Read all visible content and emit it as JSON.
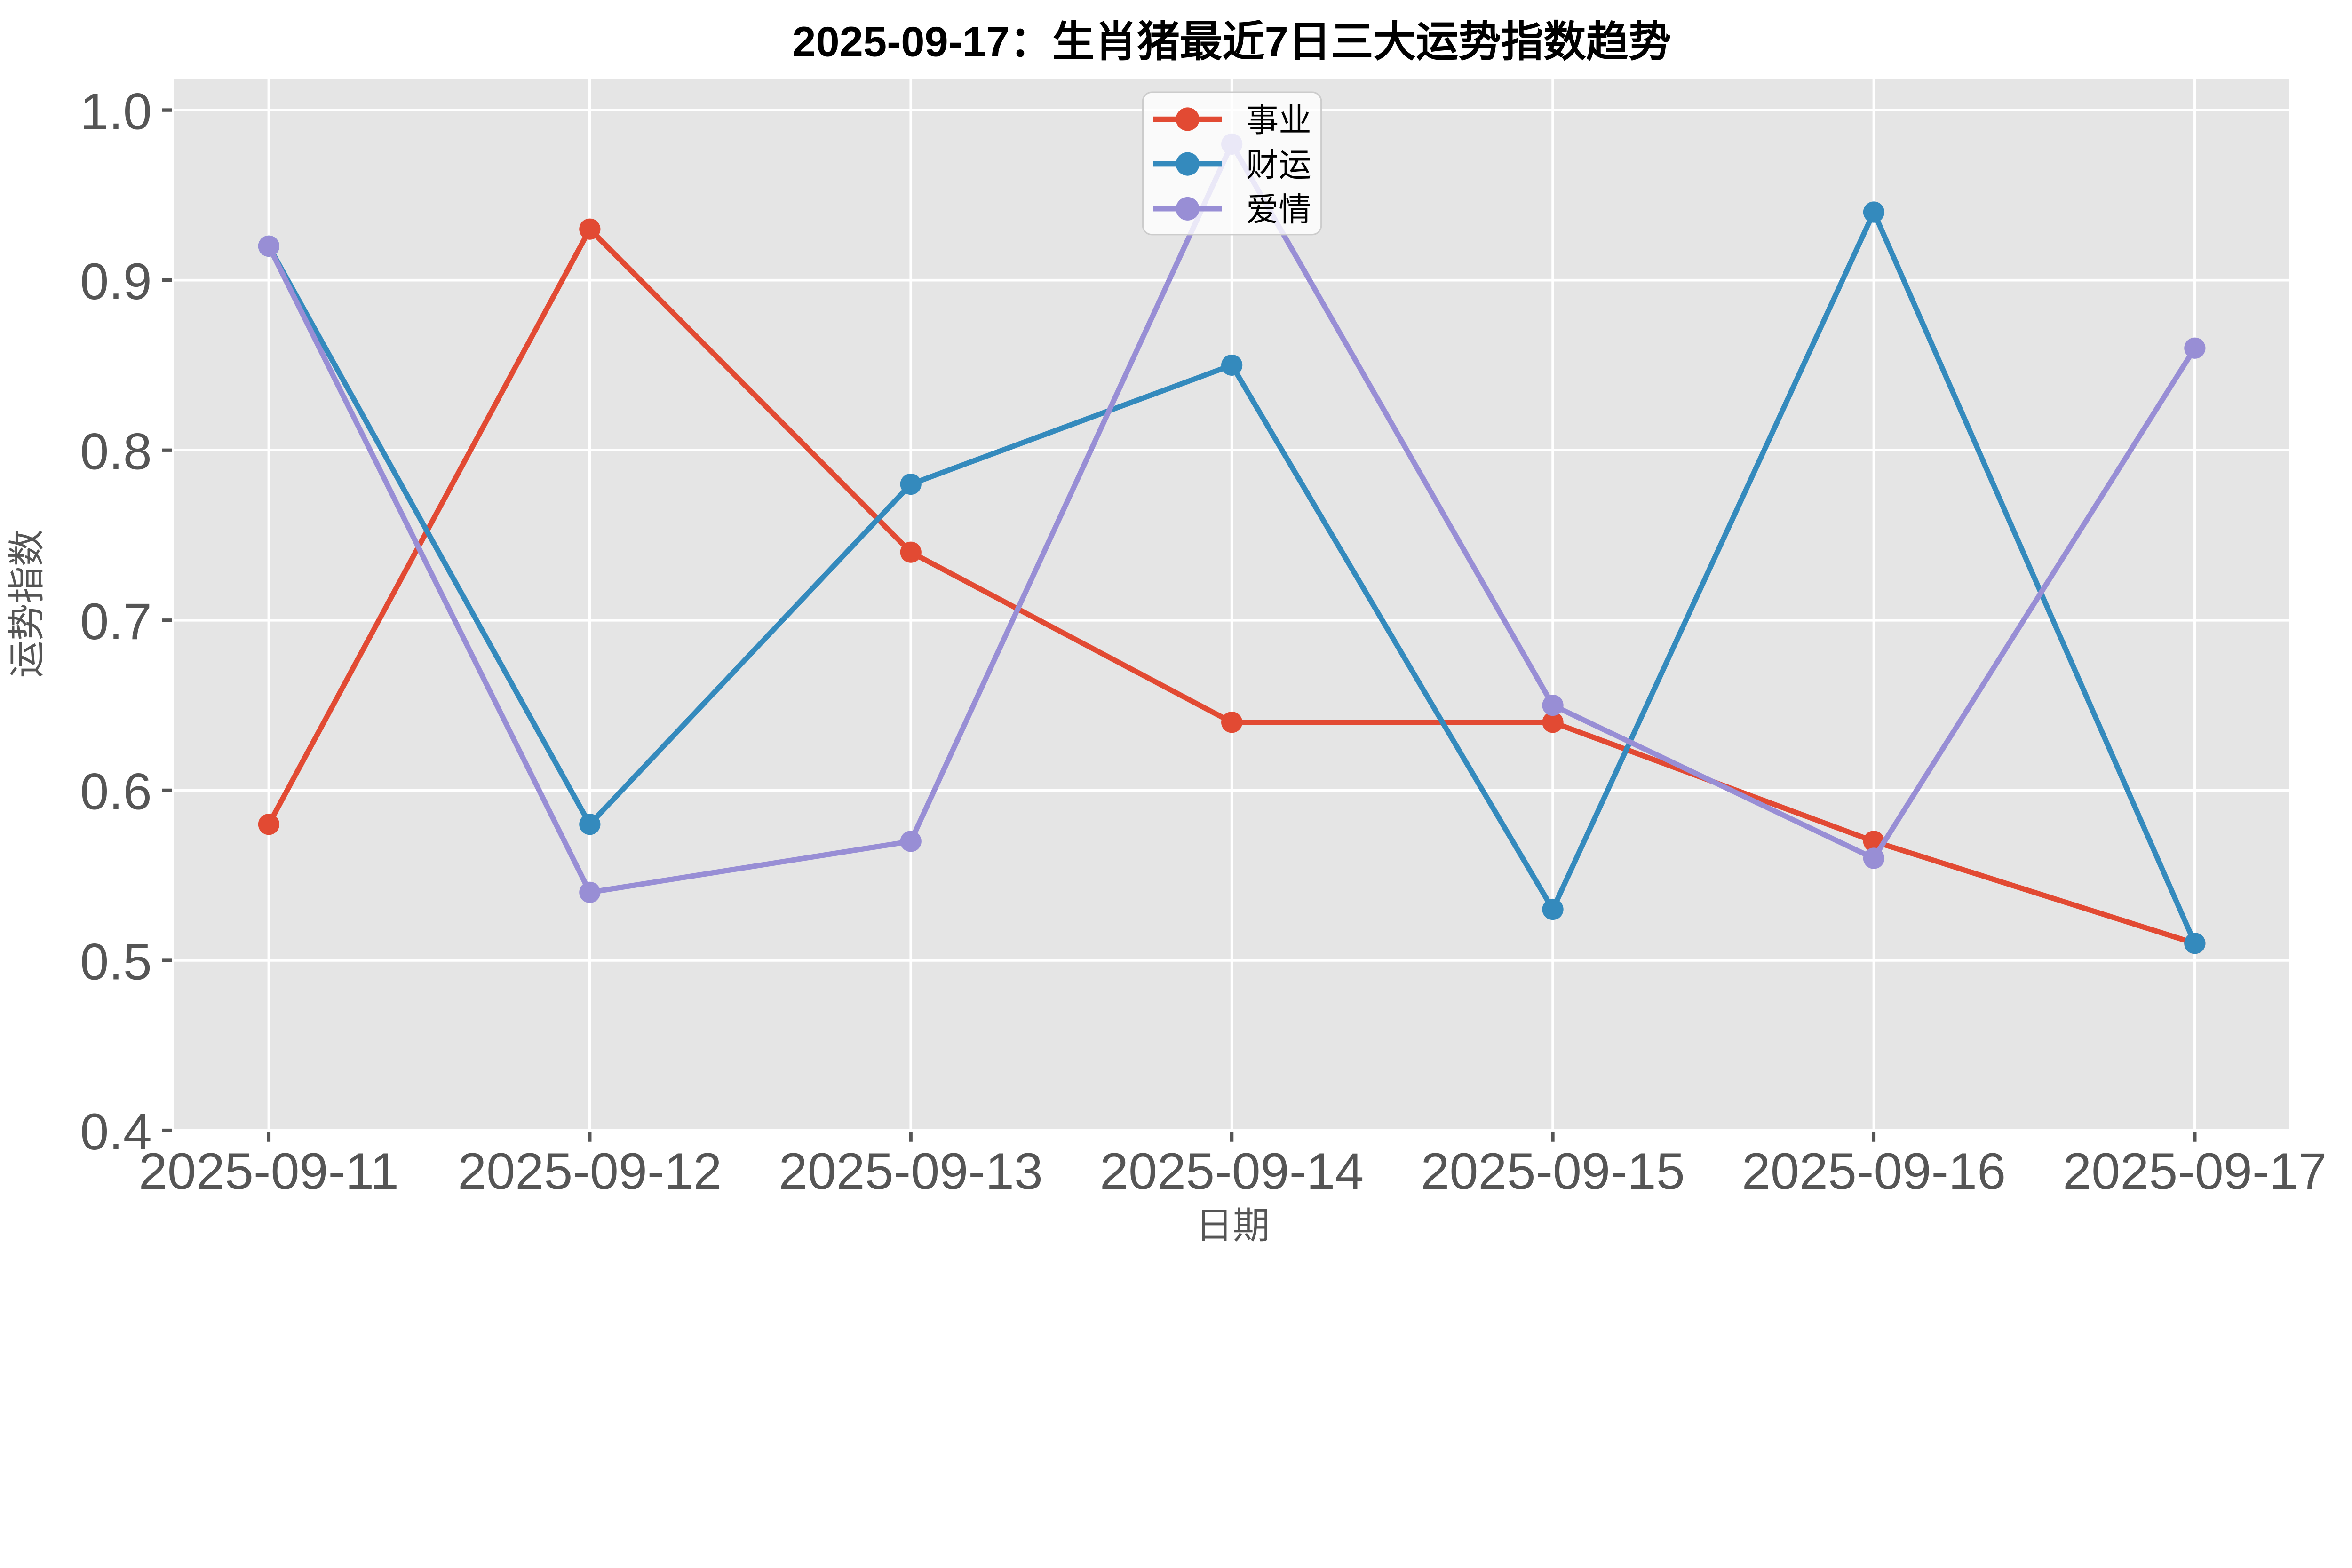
{
  "figure": {
    "background": "#FFFFFF",
    "plot_background": "#E5E5E5",
    "grid_color": "#FFFFFF",
    "tick_color": "#555555",
    "axis_label_color": "#555555",
    "title_color": "#000000",
    "legend": {
      "background": "#FFFFFF",
      "opacity": 0.8,
      "border_color": "#CCCCCC",
      "text_color": "#000000"
    }
  },
  "chart_data": {
    "type": "line",
    "title": "2025-09-17：生肖猪最近7日三大运势指数趋势",
    "xlabel": "日期",
    "ylabel": "运势指数",
    "categories": [
      "2025-09-11",
      "2025-09-12",
      "2025-09-13",
      "2025-09-14",
      "2025-09-15",
      "2025-09-16",
      "2025-09-17"
    ],
    "series": [
      {
        "key": "career",
        "name": "事业",
        "color": "#E24A33",
        "values": [
          0.58,
          0.93,
          0.74,
          0.64,
          0.64,
          0.57,
          0.51
        ]
      },
      {
        "key": "wealth",
        "name": "财运",
        "color": "#348ABD",
        "values": [
          0.92,
          0.58,
          0.78,
          0.85,
          0.53,
          0.94,
          0.51
        ]
      },
      {
        "key": "love",
        "name": "爱情",
        "color": "#988ED5",
        "values": [
          0.92,
          0.54,
          0.57,
          0.98,
          0.65,
          0.56,
          0.86
        ]
      }
    ],
    "ylim": [
      0.4,
      1.02
    ],
    "yticks": [
      1.0,
      0.9,
      0.8,
      0.7,
      0.6,
      0.5,
      0.4
    ],
    "ytick_labels": [
      "1.0",
      "0.9",
      "0.8",
      "0.7",
      "0.6",
      "0.5",
      "0.4"
    ],
    "grid": true,
    "legend_position": "upper center",
    "marker": "circle"
  }
}
